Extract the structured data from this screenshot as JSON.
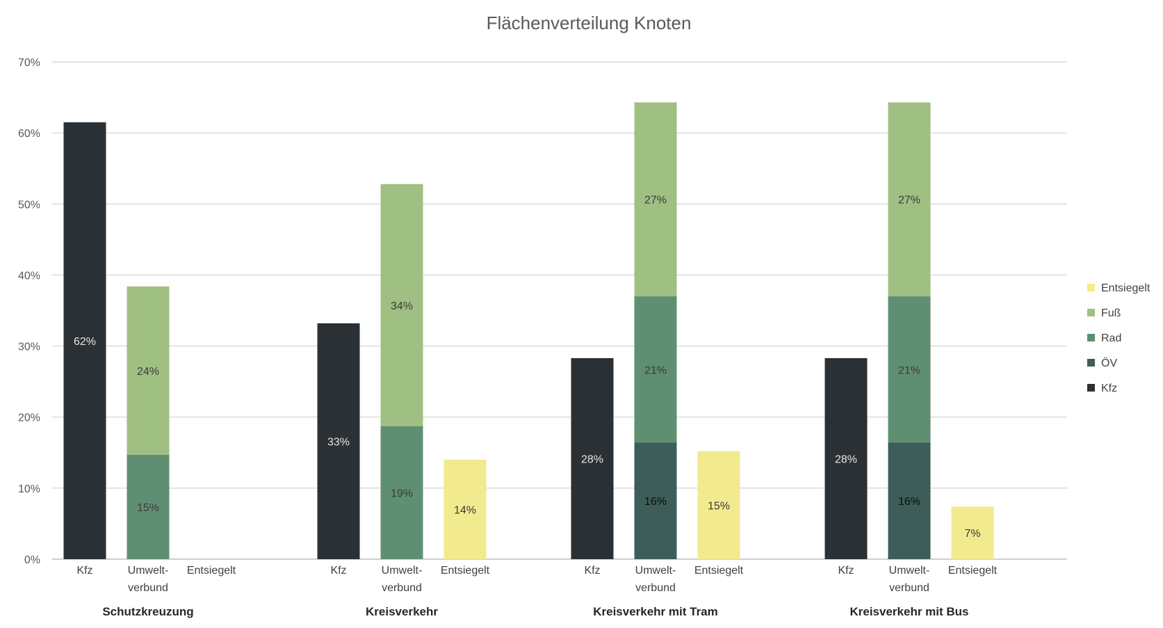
{
  "chart_data": {
    "type": "bar",
    "stacked": true,
    "title": "Flächenverteilung Knoten",
    "xlabel": "",
    "ylabel": "",
    "ylim": [
      0,
      0.7
    ],
    "yticks": [
      "0%",
      "10%",
      "20%",
      "30%",
      "40%",
      "50%",
      "60%",
      "70%"
    ],
    "grid": true,
    "legend_position": "right",
    "legend": [
      "Entsiegelt",
      "Fuß",
      "Rad",
      "ÖV",
      "Kfz"
    ],
    "colors": {
      "Kfz": "#2b3035",
      "ÖV": "#3e5d59",
      "Rad": "#5f8f73",
      "Fuß": "#a0bf82",
      "Entsiegelt": "#f2ea8f"
    },
    "label_colors": {
      "Kfz": "#e6e6e6",
      "ÖV": "#0d0d0d",
      "Rad": "#3a3a3a",
      "Fuß": "#3a3a3a",
      "Entsiegelt": "#3a3a3a"
    },
    "groups": [
      {
        "name": "Schutzkreuzung",
        "bars": [
          {
            "label": "Kfz",
            "segments": [
              {
                "series": "Kfz",
                "value": 0.615,
                "label": "62%"
              }
            ]
          },
          {
            "label": "Umwelt-\nverbund",
            "segments": [
              {
                "series": "Rad",
                "value": 0.147,
                "label": "15%"
              },
              {
                "series": "Fuß",
                "value": 0.237,
                "label": "24%"
              }
            ]
          },
          {
            "label": "Entsiegelt",
            "segments": []
          }
        ]
      },
      {
        "name": "Kreisverkehr",
        "bars": [
          {
            "label": "Kfz",
            "segments": [
              {
                "series": "Kfz",
                "value": 0.332,
                "label": "33%"
              }
            ]
          },
          {
            "label": "Umwelt-\nverbund",
            "segments": [
              {
                "series": "Rad",
                "value": 0.187,
                "label": "19%"
              },
              {
                "series": "Fuß",
                "value": 0.341,
                "label": "34%"
              }
            ]
          },
          {
            "label": "Entsiegelt",
            "segments": [
              {
                "series": "Entsiegelt",
                "value": 0.14,
                "label": "14%"
              }
            ]
          }
        ]
      },
      {
        "name": "Kreisverkehr mit Tram",
        "bars": [
          {
            "label": "Kfz",
            "segments": [
              {
                "series": "Kfz",
                "value": 0.283,
                "label": "28%"
              }
            ]
          },
          {
            "label": "Umwelt-\nverbund",
            "segments": [
              {
                "series": "ÖV",
                "value": 0.164,
                "label": "16%"
              },
              {
                "series": "Rad",
                "value": 0.206,
                "label": "21%"
              },
              {
                "series": "Fuß",
                "value": 0.273,
                "label": "27%"
              }
            ]
          },
          {
            "label": "Entsiegelt",
            "segments": [
              {
                "series": "Entsiegelt",
                "value": 0.152,
                "label": "15%"
              }
            ]
          }
        ]
      },
      {
        "name": "Kreisverkehr mit Bus",
        "bars": [
          {
            "label": "Kfz",
            "segments": [
              {
                "series": "Kfz",
                "value": 0.283,
                "label": "28%"
              }
            ]
          },
          {
            "label": "Umwelt-\nverbund",
            "segments": [
              {
                "series": "ÖV",
                "value": 0.164,
                "label": "16%"
              },
              {
                "series": "Rad",
                "value": 0.206,
                "label": "21%"
              },
              {
                "series": "Fuß",
                "value": 0.273,
                "label": "27%"
              }
            ]
          },
          {
            "label": "Entsiegelt",
            "segments": [
              {
                "series": "Entsiegelt",
                "value": 0.074,
                "label": "7%"
              }
            ]
          }
        ]
      }
    ]
  }
}
